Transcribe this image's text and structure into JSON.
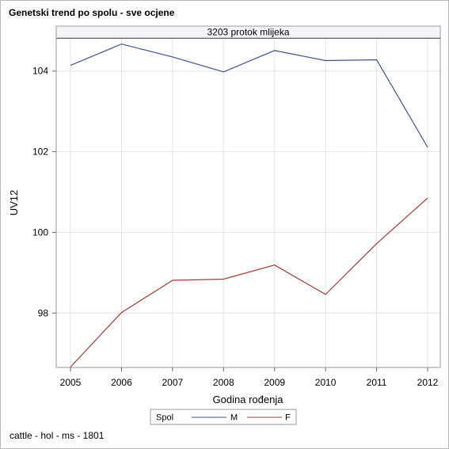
{
  "title": "Genetski trend po spolu - sve ocjene",
  "footnote": "cattle - hol - ms - 1801",
  "chart_data": {
    "type": "line",
    "panel_label": "3203 protok mlijeka",
    "xlabel": "Godina rođenja",
    "ylabel": "UV12",
    "categories": [
      "2005",
      "2006",
      "2007",
      "2008",
      "2009",
      "2010",
      "2011",
      "2012"
    ],
    "ylim": [
      96.65,
      104.8
    ],
    "yticks": [
      98,
      100,
      102,
      104
    ],
    "grid": true,
    "legend": {
      "title": "Spol",
      "position": "bottom-center"
    },
    "series": [
      {
        "name": "M",
        "color": "#3e4f8c",
        "values": [
          104.14,
          104.67,
          104.35,
          103.98,
          104.51,
          104.26,
          104.28,
          102.11
        ]
      },
      {
        "name": "F",
        "color": "#a23b34",
        "values": [
          96.66,
          98.01,
          98.81,
          98.84,
          99.19,
          98.46,
          99.72,
          100.85
        ]
      }
    ]
  }
}
